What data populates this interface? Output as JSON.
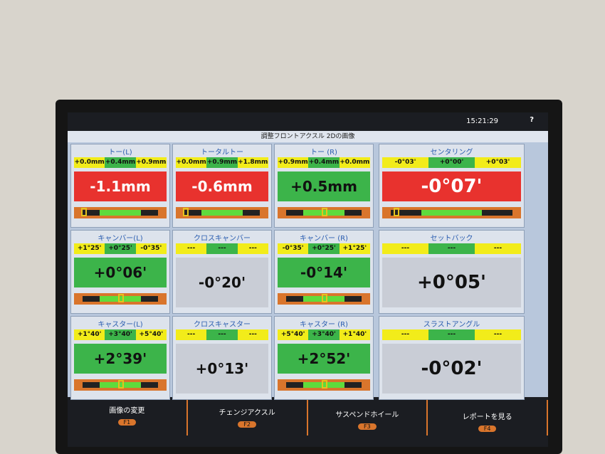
{
  "header": {
    "title": "調整フロントアクスル 2Dの画像",
    "time": "15:21:29",
    "help": "?"
  },
  "panels": [
    {
      "title": "トー(L)",
      "limits": [
        "+0.0mm",
        "+0.4mm",
        "+0.9mm"
      ],
      "value": "-1.1mm",
      "color": "#e8322e",
      "gauge": true
    },
    {
      "title": "トータルトー",
      "limits": [
        "+0.0mm",
        "+0.9mm",
        "+1.8mm"
      ],
      "value": "-0.6mm",
      "color": "#e8322e",
      "gauge": true
    },
    {
      "title": "トー (R)",
      "limits": [
        "+0.9mm",
        "+0.4mm",
        "+0.0mm"
      ],
      "value": "+0.5mm",
      "color": "#3cb44a",
      "gauge": true
    },
    {
      "title": "センタリング",
      "limits": [
        "-0°03'",
        "+0°00'",
        "+0°03'"
      ],
      "value": "-0°07'",
      "color": "#e8322e",
      "gauge": true
    },
    {
      "title": "キャンバー(L)",
      "limits": [
        "+1°25'",
        "+0°25'",
        "-0°35'"
      ],
      "value": "+0°06'",
      "color": "#3cb44a",
      "gauge": true
    },
    {
      "title": "クロスキャンバー",
      "limits": [
        "---",
        "---",
        "---"
      ],
      "value": "-0°20'",
      "color": "#c9cdd6",
      "gauge": false
    },
    {
      "title": "キャンバー (R)",
      "limits": [
        "-0°35'",
        "+0°25'",
        "+1°25'"
      ],
      "value": "-0°14'",
      "color": "#3cb44a",
      "gauge": true
    },
    {
      "title": "セットバック",
      "limits": [
        "---",
        "---",
        "---"
      ],
      "value": "+0°05'",
      "color": "#c9cdd6",
      "gauge": false
    },
    {
      "title": "キャスター(L)",
      "limits": [
        "+1°40'",
        "+3°40'",
        "+5°40'"
      ],
      "value": "+2°39'",
      "color": "#3cb44a",
      "gauge": true
    },
    {
      "title": "クロスキャスター",
      "limits": [
        "---",
        "---",
        "---"
      ],
      "value": "+0°13'",
      "color": "#c9cdd6",
      "gauge": false
    },
    {
      "title": "キャスター (R)",
      "limits": [
        "+5°40'",
        "+3°40'",
        "+1°40'"
      ],
      "value": "+2°52'",
      "color": "#3cb44a",
      "gauge": true
    },
    {
      "title": "スラストアングル",
      "limits": [
        "---",
        "---",
        "---"
      ],
      "value": "-0°02'",
      "color": "#c9cdd6",
      "gauge": false
    }
  ],
  "buttons": [
    {
      "label": "画像の変更",
      "key": "F1"
    },
    {
      "label": "チェンジアクスル",
      "key": "F2"
    },
    {
      "label": "サスペンドホイール",
      "key": "F3"
    },
    {
      "label": "レポートを見る",
      "key": "F4"
    }
  ]
}
